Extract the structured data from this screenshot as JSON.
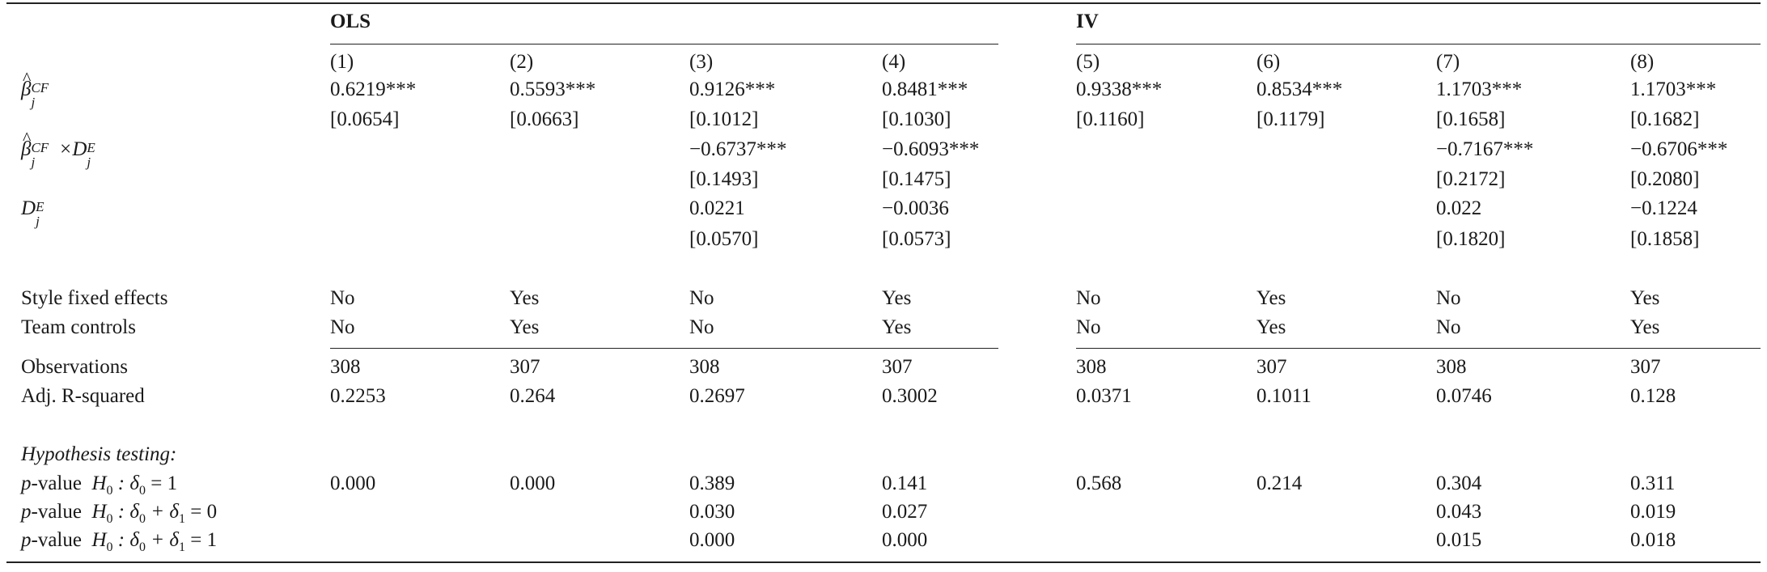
{
  "groups": {
    "ols": "OLS",
    "iv": "IV"
  },
  "columns": [
    "(1)",
    "(2)",
    "(3)",
    "(4)",
    "(5)",
    "(6)",
    "(7)",
    "(8)"
  ],
  "row_labels": {
    "beta_sym": "β",
    "beta_sup": "CF",
    "beta_sub": "j",
    "times_d": "×D",
    "d_sym": "D",
    "d_sup": "E",
    "d_sub": "j",
    "style_fe": "Style fixed effects",
    "team_controls": "Team controls",
    "observations": "Observations",
    "adj_r2": "Adj. R-squared",
    "hypothesis": "Hypothesis testing:",
    "p_prefix": "p",
    "p_value": "-value",
    "h0_1": "H",
    "h0_sub": "0",
    "test1": ": δ",
    "test1_sub": "0",
    "test1_rhs": " = 1",
    "test2": ": δ",
    "test2_sub0": "0",
    "test2_mid": " + δ",
    "test2_sub1": "1",
    "test2_rhs": " = 0",
    "test3_rhs": " = 1"
  },
  "rows": {
    "beta": [
      "0.6219***",
      "0.5593***",
      "0.9126***",
      "0.8481***",
      "0.9338***",
      "0.8534***",
      "1.1703***",
      "1.1703***"
    ],
    "beta_se": [
      "[0.0654]",
      "[0.0663]",
      "[0.1012]",
      "[0.1030]",
      "[0.1160]",
      "[0.1179]",
      "[0.1658]",
      "[0.1682]"
    ],
    "interaction": [
      "",
      "",
      "−0.6737***",
      "−0.6093***",
      "",
      "",
      "−0.7167***",
      "−0.6706***"
    ],
    "interaction_se": [
      "",
      "",
      "[0.1493]",
      "[0.1475]",
      "",
      "",
      "[0.2172]",
      "[0.2080]"
    ],
    "d": [
      "",
      "",
      "0.0221",
      "−0.0036",
      "",
      "",
      "0.022",
      "−0.1224"
    ],
    "d_se": [
      "",
      "",
      "[0.0570]",
      "[0.0573]",
      "",
      "",
      "[0.1820]",
      "[0.1858]"
    ],
    "style_fe": [
      "No",
      "Yes",
      "No",
      "Yes",
      "No",
      "Yes",
      "No",
      "Yes"
    ],
    "team_controls": [
      "No",
      "Yes",
      "No",
      "Yes",
      "No",
      "Yes",
      "No",
      "Yes"
    ],
    "observations": [
      "308",
      "307",
      "308",
      "307",
      "308",
      "307",
      "308",
      "307"
    ],
    "adj_r2": [
      "0.2253",
      "0.264",
      "0.2697",
      "0.3002",
      "0.0371",
      "0.1011",
      "0.0746",
      "0.128"
    ],
    "p1": [
      "0.000",
      "0.000",
      "0.389",
      "0.141",
      "0.568",
      "0.214",
      "0.304",
      "0.311"
    ],
    "p2": [
      "",
      "",
      "0.030",
      "0.027",
      "",
      "",
      "0.043",
      "0.019"
    ],
    "p3": [
      "",
      "",
      "0.000",
      "0.000",
      "",
      "",
      "0.015",
      "0.018"
    ]
  }
}
